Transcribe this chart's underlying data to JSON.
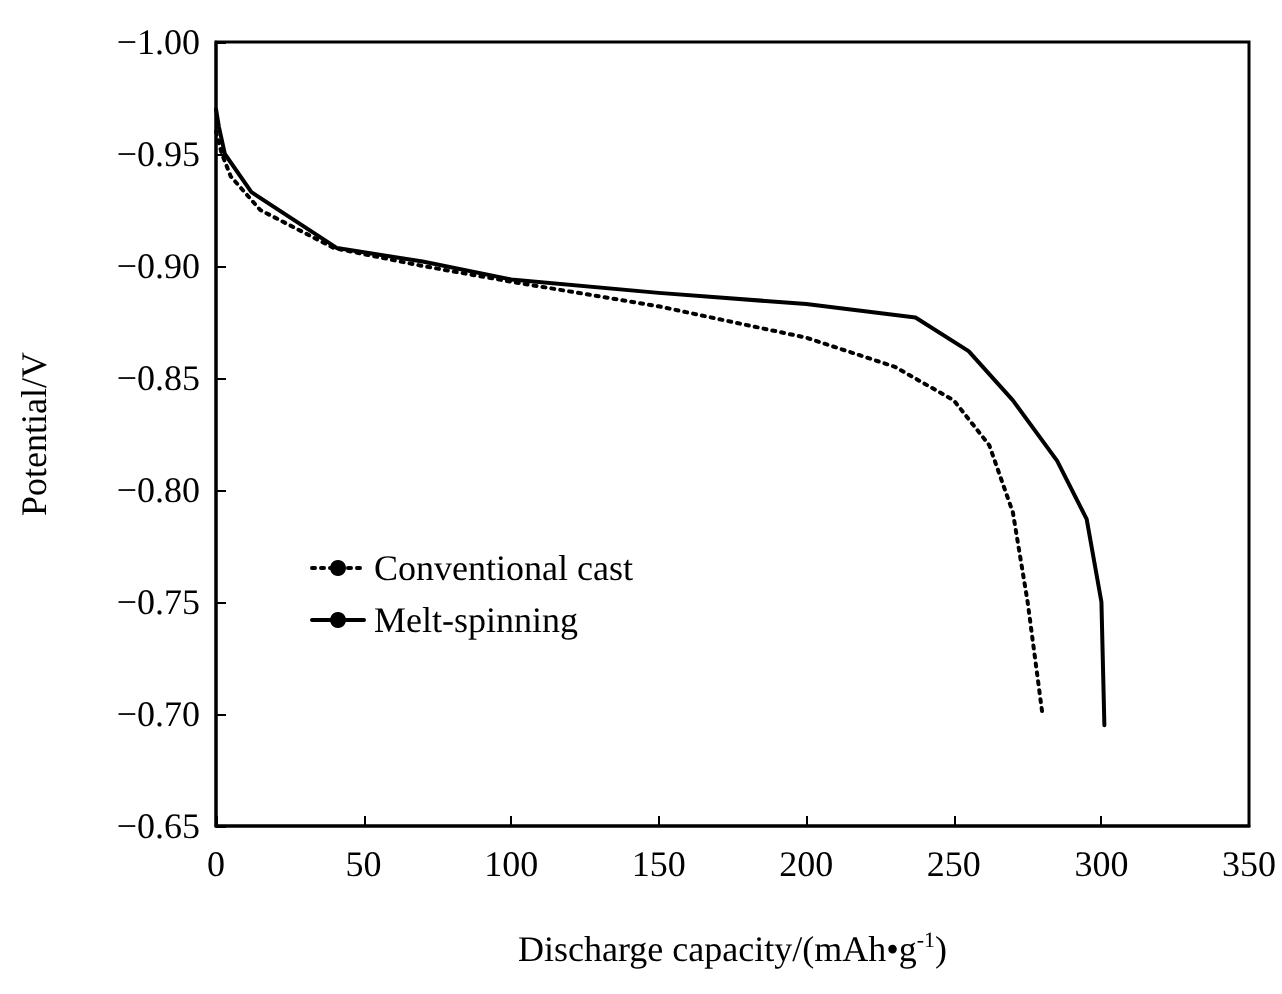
{
  "chart_data": {
    "type": "line",
    "xlabel": "Discharge capacity/(mAh•g$^{-1}$)",
    "ylabel": "Potential/V",
    "xlim": [
      0,
      350
    ],
    "xticks": [
      0,
      50,
      100,
      150,
      200,
      250,
      300,
      350
    ],
    "ylim": [
      -0.65,
      -1.0
    ],
    "yticks": [
      {
        "value": -1.0,
        "label": "−1.00"
      },
      {
        "value": -0.95,
        "label": "−0.95"
      },
      {
        "value": -0.9,
        "label": "−0.90"
      },
      {
        "value": -0.85,
        "label": "−0.85"
      },
      {
        "value": -0.8,
        "label": "−0.80"
      },
      {
        "value": -0.75,
        "label": "−0.75"
      },
      {
        "value": -0.7,
        "label": "−0.70"
      },
      {
        "value": -0.65,
        "label": "−0.65"
      }
    ],
    "legend": "left",
    "grid": false,
    "marker": "none",
    "series": [
      {
        "name": "Conventional cast",
        "color": "#000000",
        "line_style": "dotted",
        "x": [
          0,
          2,
          5,
          15,
          40,
          70,
          100,
          150,
          200,
          230,
          250,
          262,
          270,
          275,
          280
        ],
        "values": [
          -0.96,
          -0.95,
          -0.94,
          -0.925,
          -0.908,
          -0.9,
          -0.893,
          -0.882,
          -0.868,
          -0.855,
          -0.84,
          -0.82,
          -0.79,
          -0.75,
          -0.7
        ]
      },
      {
        "name": "Melt-spinning",
        "color": "#000000",
        "line_style": "solid",
        "x": [
          0,
          1,
          3,
          12,
          41,
          70,
          100,
          150,
          200,
          237,
          255,
          270,
          285,
          295,
          300,
          301
        ],
        "values": [
          -0.97,
          -0.962,
          -0.95,
          -0.933,
          -0.908,
          -0.902,
          -0.894,
          -0.888,
          -0.883,
          -0.877,
          -0.862,
          -0.84,
          -0.813,
          -0.787,
          -0.75,
          -0.695
        ]
      }
    ]
  }
}
